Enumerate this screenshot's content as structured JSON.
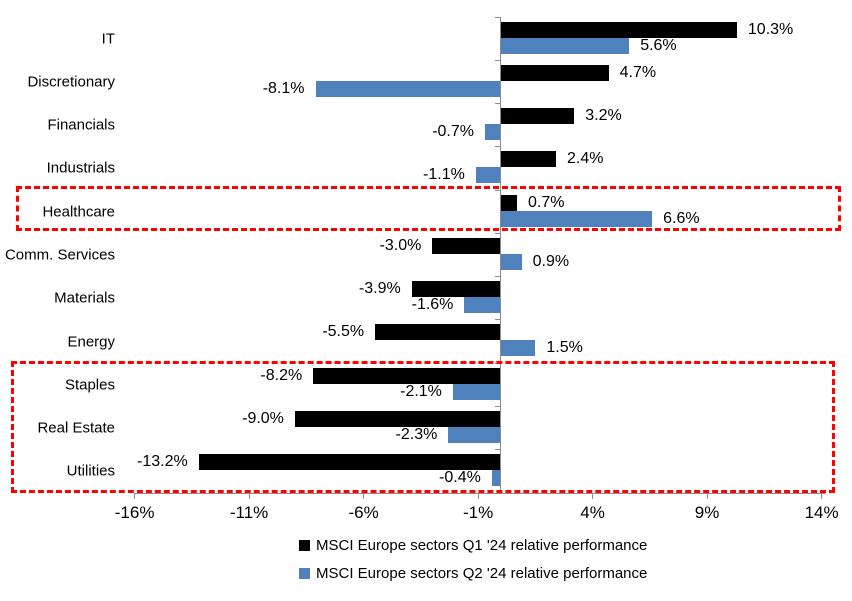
{
  "chart_data": {
    "type": "bar",
    "orientation": "horizontal",
    "title": "",
    "categories": [
      "IT",
      "Discretionary",
      "Financials",
      "Industrials",
      "Healthcare",
      "Comm. Services",
      "Materials",
      "Energy",
      "Staples",
      "Real Estate",
      "Utilities"
    ],
    "series": [
      {
        "name": "MSCI Europe sectors Q1 '24 relative performance",
        "color": "#000000",
        "values": [
          10.3,
          4.7,
          3.2,
          2.4,
          0.7,
          -3.0,
          -3.9,
          -5.5,
          -8.2,
          -9.0,
          -13.2
        ],
        "value_labels": [
          "10.3%",
          "4.7%",
          "3.2%",
          "2.4%",
          "0.7%",
          "-3.0%",
          "-3.9%",
          "-5.5%",
          "-8.2%",
          "-9.0%",
          "-13.2%"
        ]
      },
      {
        "name": "MSCI Europe sectors Q2 '24 relative performance",
        "color": "#4F81BD",
        "values": [
          5.6,
          -8.1,
          -0.7,
          -1.1,
          6.6,
          0.9,
          -1.6,
          1.5,
          -2.1,
          -2.3,
          -0.4
        ],
        "value_labels": [
          "5.6%",
          "-8.1%",
          "-0.7%",
          "-1.1%",
          "6.6%",
          "0.9%",
          "-1.6%",
          "1.5%",
          "-2.1%",
          "-2.3%",
          "-0.4%"
        ]
      }
    ],
    "x_tick_values": [
      -16,
      -11,
      -6,
      -1,
      4,
      9,
      14
    ],
    "x_tick_labels": [
      "-16%",
      "-11%",
      "-6%",
      "-1%",
      "4%",
      "9%",
      "14%"
    ],
    "xlim": [
      -16,
      14
    ],
    "grid": false,
    "legend_position": "bottom",
    "axis_color": "#8C8C8C",
    "highlight_color": "#FF0000",
    "highlighted_categories": [
      [
        "Healthcare"
      ],
      [
        "Staples",
        "Real Estate",
        "Utilities"
      ]
    ]
  },
  "legend": {
    "items": [
      {
        "label": "MSCI Europe sectors Q1 '24 relative performance",
        "color": "#000000"
      },
      {
        "label": "MSCI Europe sectors Q2 '24 relative performance",
        "color": "#4F81BD"
      }
    ]
  }
}
